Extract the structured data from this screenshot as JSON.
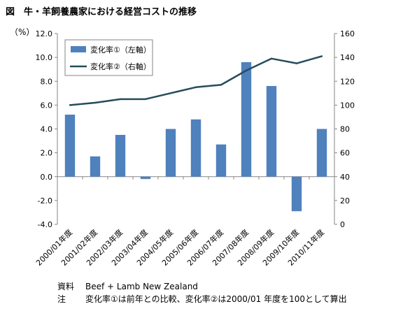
{
  "title": "図　牛・羊飼養農家における経営コストの推移",
  "chart_data": {
    "type": "bar",
    "categories": [
      "2000/01年度",
      "2001/02年度",
      "2002/03年度",
      "2003/04年度",
      "2004/05年度",
      "2005/06年度",
      "2006/07年度",
      "2007/08年度",
      "2008/09年度",
      "2009/10年度",
      "2010/11年度"
    ],
    "series": [
      {
        "name": "変化率①（左軸）",
        "type": "bar",
        "axis": "left",
        "values": [
          5.2,
          1.7,
          3.5,
          -0.2,
          4.0,
          4.8,
          2.7,
          9.6,
          7.6,
          -2.9,
          4.0
        ]
      },
      {
        "name": "変化率②（右軸）",
        "type": "line",
        "axis": "right",
        "values": [
          100,
          102,
          105,
          105,
          110,
          115,
          117,
          129,
          139,
          135,
          141
        ]
      }
    ],
    "ylabel": "（%）",
    "ylim": [
      -4.0,
      12.0
    ],
    "y2lim": [
      0,
      160
    ],
    "yticks": [
      "-4.0",
      "-2.0",
      "0.0",
      "2.0",
      "4.0",
      "6.0",
      "8.0",
      "10.0",
      "12.0"
    ],
    "y2ticks": [
      "0",
      "20",
      "40",
      "60",
      "80",
      "100",
      "120",
      "140",
      "160"
    ],
    "grid": false,
    "legend": "top-left",
    "colors": {
      "bar": "#4f81bd",
      "line": "#254d5c",
      "axis": "#868686"
    }
  },
  "notes": [
    {
      "label": "資料",
      "text": "Beef + Lamb New Zealand"
    },
    {
      "label": "注",
      "text": "変化率①は前年との比較、変化率②は2000/01 年度を100として算出"
    }
  ]
}
